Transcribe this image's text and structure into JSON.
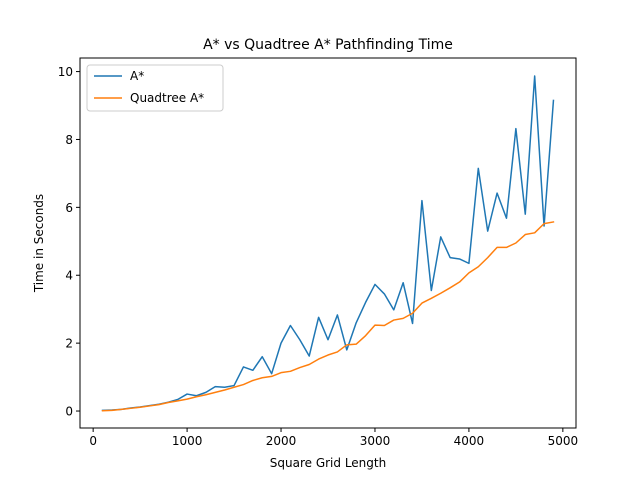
{
  "chart_data": {
    "type": "line",
    "title": "A* vs Quadtree A* Pathfinding Time",
    "xlabel": "Square Grid Length",
    "ylabel": "Time in Seconds",
    "xlim": [
      -140,
      5140
    ],
    "ylim": [
      -0.5,
      10.4
    ],
    "xticks": [
      0,
      1000,
      2000,
      3000,
      4000,
      5000
    ],
    "yticks": [
      0,
      2,
      4,
      6,
      8,
      10
    ],
    "grid": false,
    "legend_position": "top-left",
    "x": [
      100,
      200,
      300,
      400,
      500,
      600,
      700,
      800,
      900,
      1000,
      1100,
      1200,
      1300,
      1400,
      1500,
      1600,
      1700,
      1800,
      1900,
      2000,
      2100,
      2200,
      2300,
      2400,
      2500,
      2600,
      2700,
      2800,
      2900,
      3000,
      3100,
      3200,
      3300,
      3400,
      3500,
      3600,
      3700,
      3800,
      3900,
      4000,
      4100,
      4200,
      4300,
      4400,
      4500,
      4600,
      4700,
      4800,
      4900
    ],
    "series": [
      {
        "name": "A*",
        "color": "#1f77b4",
        "values": [
          0.02,
          0.03,
          0.05,
          0.09,
          0.12,
          0.16,
          0.2,
          0.26,
          0.34,
          0.5,
          0.45,
          0.55,
          0.72,
          0.7,
          0.75,
          1.3,
          1.2,
          1.6,
          1.1,
          2.0,
          2.52,
          2.1,
          1.62,
          2.76,
          2.1,
          2.83,
          1.8,
          2.6,
          3.2,
          3.73,
          3.45,
          2.98,
          3.78,
          2.58,
          6.2,
          3.55,
          5.13,
          4.52,
          4.48,
          4.35,
          7.15,
          5.3,
          6.42,
          5.68,
          8.32,
          5.8,
          9.87,
          5.45,
          9.15
        ]
      },
      {
        "name": "Quadtree A*",
        "color": "#ff7f0e",
        "values": [
          0.01,
          0.02,
          0.05,
          0.08,
          0.11,
          0.15,
          0.19,
          0.25,
          0.3,
          0.35,
          0.42,
          0.48,
          0.55,
          0.62,
          0.7,
          0.78,
          0.9,
          0.98,
          1.02,
          1.13,
          1.17,
          1.28,
          1.37,
          1.53,
          1.65,
          1.74,
          1.95,
          1.97,
          2.22,
          2.53,
          2.52,
          2.68,
          2.73,
          2.88,
          3.18,
          3.32,
          3.47,
          3.63,
          3.8,
          4.07,
          4.25,
          4.52,
          4.82,
          4.82,
          4.95,
          5.2,
          5.25,
          5.52,
          5.57
        ]
      }
    ]
  }
}
